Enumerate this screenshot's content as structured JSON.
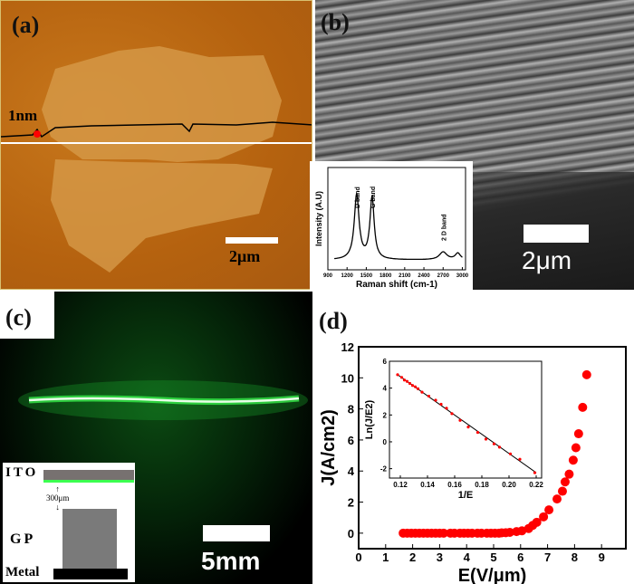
{
  "panels": {
    "a": "(a)",
    "b": "(b)",
    "c": "(c)",
    "d": "(d)"
  },
  "panel_a": {
    "height_label": "1nm",
    "scale_bar": "2μm"
  },
  "panel_b": {
    "scale_bar": "2μm"
  },
  "panel_c": {
    "scale_bar": "5mm",
    "schematic": {
      "ito": "ITO",
      "gap": "300μm",
      "gp": "GP",
      "metal": "Metal"
    },
    "colors": {
      "emission": "#3cff50",
      "ito": "#777170",
      "gp": "#7a7a7a",
      "metal": "#000000"
    }
  },
  "chart_data": [
    {
      "id": "main",
      "type": "scatter",
      "xlabel": "E(V/μm)",
      "ylabel": "J(A/cm2)",
      "xlim": [
        0,
        9.9
      ],
      "ylim": [
        -1,
        12
      ],
      "xticks": [
        0,
        1,
        2,
        3,
        4,
        5,
        6,
        7,
        8,
        9
      ],
      "yticks": [
        0,
        2,
        4,
        6,
        8,
        10,
        12
      ],
      "color": "#ff0000",
      "x": [
        1.65,
        1.8,
        1.95,
        2.1,
        2.25,
        2.4,
        2.55,
        2.7,
        2.85,
        3.0,
        3.15,
        3.4,
        3.55,
        3.75,
        3.9,
        4.05,
        4.2,
        4.4,
        4.55,
        4.75,
        4.9,
        5.05,
        5.2,
        5.3,
        5.45,
        5.6,
        5.85,
        6.05,
        6.3,
        6.45,
        6.6,
        6.85,
        7.05,
        7.35,
        7.55,
        7.65,
        7.8,
        7.95,
        8.05,
        8.15,
        8.3,
        8.45
      ],
      "y": [
        0,
        0,
        0,
        0,
        0,
        0,
        0,
        0,
        0,
        0,
        0,
        0,
        0,
        0,
        0,
        0,
        0,
        0,
        0,
        0,
        0,
        0,
        0,
        0.02,
        0.03,
        0.05,
        0.1,
        0.15,
        0.3,
        0.5,
        0.7,
        1.05,
        1.5,
        2.2,
        2.7,
        3.3,
        3.8,
        4.7,
        5.5,
        6.4,
        8.1,
        10.2
      ]
    },
    {
      "id": "inset-fn",
      "type": "scatter",
      "xlabel": "1/E",
      "ylabel": "Ln(J/E2)",
      "xlim": [
        0.112,
        0.224
      ],
      "ylim": [
        -2.7,
        6
      ],
      "xticks": [
        "0.12",
        "0.14",
        "0.16",
        "0.18",
        "0.20",
        "0.22"
      ],
      "yticks": [
        "-2",
        "0",
        "2",
        "4",
        "6"
      ],
      "color": "#ff0000",
      "x": [
        0.118,
        0.121,
        0.123,
        0.125,
        0.127,
        0.129,
        0.131,
        0.133,
        0.136,
        0.141,
        0.146,
        0.15,
        0.154,
        0.158,
        0.164,
        0.17,
        0.177,
        0.183,
        0.189,
        0.193,
        0.201,
        0.208,
        0.219
      ],
      "y": [
        5.0,
        4.8,
        4.6,
        4.5,
        4.35,
        4.2,
        4.1,
        3.95,
        3.7,
        3.4,
        3.1,
        2.8,
        2.5,
        2.1,
        1.6,
        1.1,
        0.7,
        0.2,
        -0.15,
        -0.4,
        -0.9,
        -1.3,
        -2.3
      ],
      "fit": {
        "x": [
          0.118,
          0.22
        ],
        "y": [
          5.0,
          -2.3
        ]
      }
    },
    {
      "id": "raman",
      "type": "line",
      "xlabel": "Raman shift (cm-1)",
      "ylabel": "Intensity (A.U)",
      "xlim": [
        900,
        3050
      ],
      "xticks": [
        "900",
        "1200",
        "1500",
        "1800",
        "2100",
        "2400",
        "2700",
        "3000"
      ],
      "annotations": [
        {
          "text": "D band",
          "x": 1350
        },
        {
          "text": "G band",
          "x": 1590
        },
        {
          "text": "2 D band",
          "x": 2700
        }
      ],
      "peaks": [
        {
          "x": 1350,
          "h": 1.0,
          "w": 45
        },
        {
          "x": 1590,
          "h": 0.95,
          "w": 40
        },
        {
          "x": 2700,
          "h": 0.12,
          "w": 70
        },
        {
          "x": 2930,
          "h": 0.1,
          "w": 50
        }
      ]
    }
  ]
}
